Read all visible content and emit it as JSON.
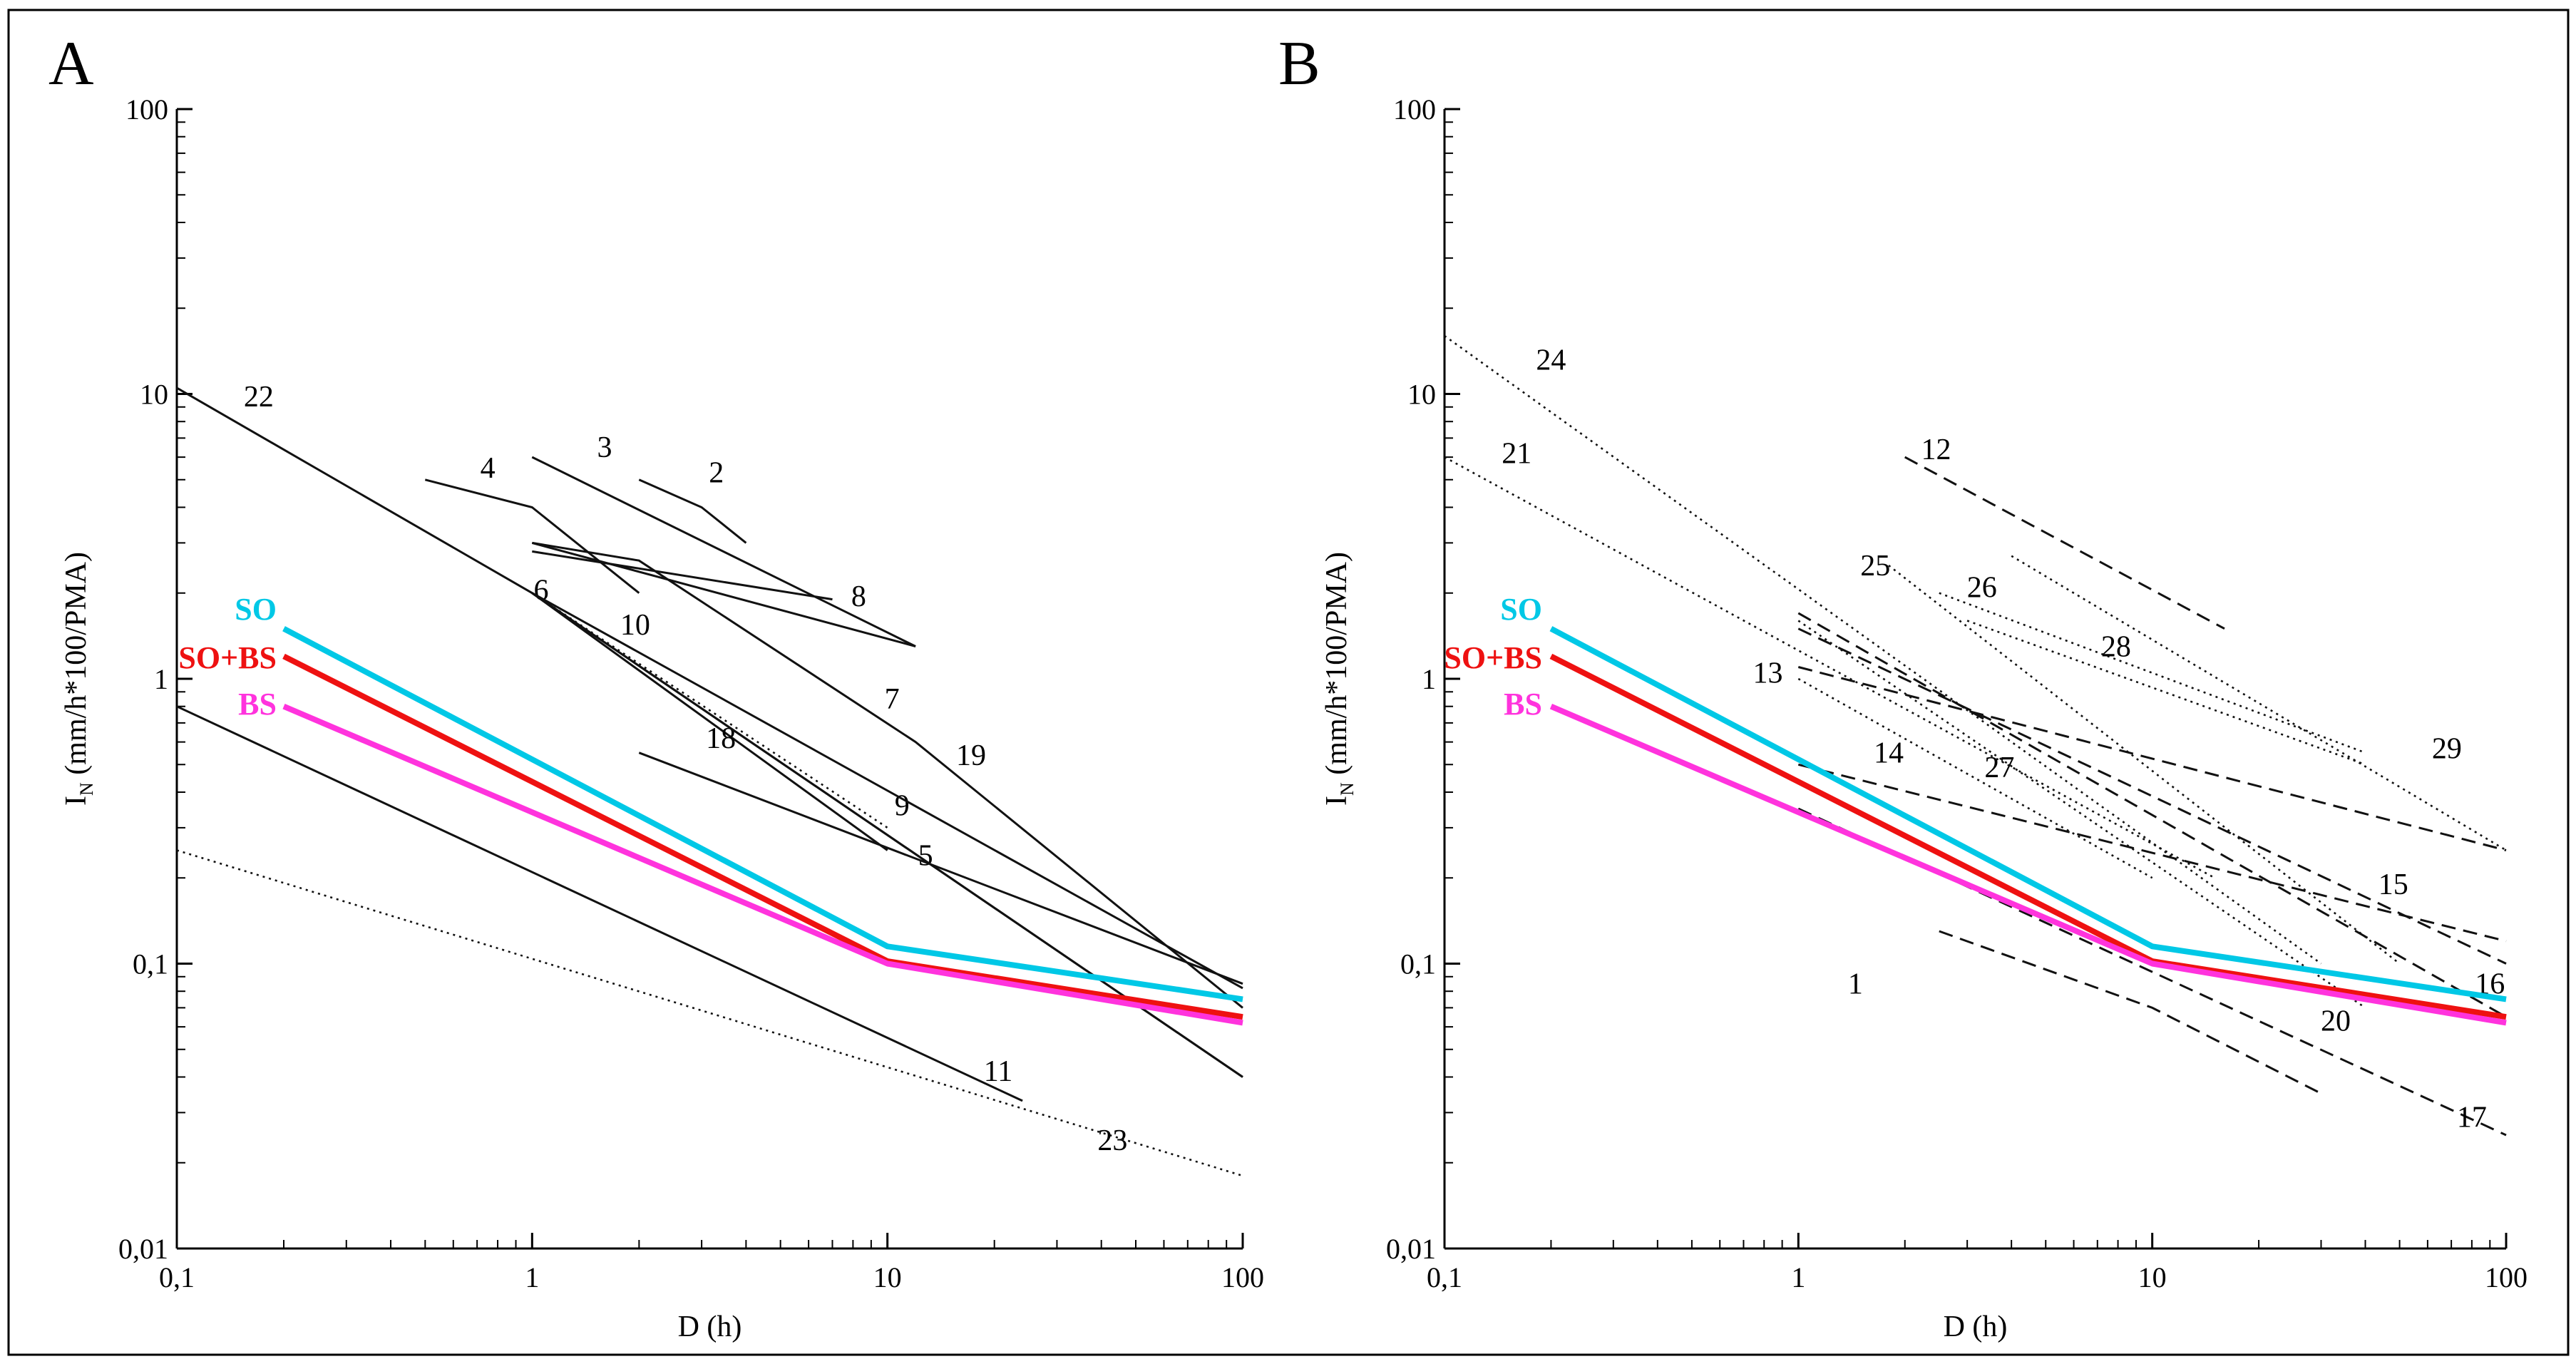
{
  "figure": {
    "panels": [
      "A",
      "B"
    ]
  },
  "chart_data": [
    {
      "panel": "A",
      "type": "line",
      "scale": "log-log",
      "xlabel": "D (h)",
      "ylabel_main": "I",
      "ylabel_sub": "N",
      "ylabel_rest": " (mm/h*100/PMA)",
      "xlim": [
        0.1,
        100
      ],
      "ylim": [
        0.01,
        100
      ],
      "x_ticks": [
        {
          "value": 0.1,
          "label": "0,1"
        },
        {
          "value": 1,
          "label": "1"
        },
        {
          "value": 10,
          "label": "10"
        },
        {
          "value": 100,
          "label": "100"
        }
      ],
      "y_ticks": [
        {
          "value": 0.01,
          "label": "0,01"
        },
        {
          "value": 0.1,
          "label": "0,1"
        },
        {
          "value": 1,
          "label": "1"
        },
        {
          "value": 10,
          "label": "10"
        },
        {
          "value": 100,
          "label": "100"
        }
      ],
      "highlighted_series": [
        {
          "name": "SO",
          "color": "#00c8e6",
          "points": [
            [
              0.2,
              1.5
            ],
            [
              10,
              0.115
            ],
            [
              100,
              0.075
            ]
          ]
        },
        {
          "name": "SO+BS",
          "color": "#ee1111",
          "points": [
            [
              0.2,
              1.2
            ],
            [
              10,
              0.102
            ],
            [
              100,
              0.065
            ]
          ]
        },
        {
          "name": "BS",
          "color": "#ff33dd",
          "points": [
            [
              0.2,
              0.8
            ],
            [
              10,
              0.1
            ],
            [
              100,
              0.062
            ]
          ]
        }
      ],
      "series": [
        {
          "id": "2",
          "style": "solid",
          "points": [
            [
              2,
              5
            ],
            [
              3,
              4
            ],
            [
              4,
              3
            ]
          ],
          "label_at": [
            3.3,
            5.3
          ]
        },
        {
          "id": "3",
          "style": "solid",
          "points": [
            [
              1,
              6
            ],
            [
              12,
              1.3
            ]
          ],
          "label_at": [
            1.6,
            6.5
          ]
        },
        {
          "id": "4",
          "style": "solid",
          "points": [
            [
              0.5,
              5
            ],
            [
              1,
              4
            ],
            [
              2,
              2
            ]
          ],
          "label_at": [
            0.75,
            5.5
          ]
        },
        {
          "id": "5",
          "style": "solid",
          "points": [
            [
              1,
              2
            ],
            [
              10,
              0.25
            ]
          ],
          "label_at": [
            12.8,
            0.24
          ]
        },
        {
          "id": "6",
          "style": "solid",
          "points": [
            [
              1,
              3
            ],
            [
              2,
              2.6
            ],
            [
              12,
              0.6
            ],
            [
              100,
              0.07
            ]
          ],
          "label_at": [
            1.06,
            2.05
          ]
        },
        {
          "id": "7",
          "style": "solid",
          "points": [
            [
              1,
              3
            ],
            [
              12,
              1.3
            ]
          ],
          "label_at": [
            10.3,
            0.85
          ]
        },
        {
          "id": "8",
          "style": "solid",
          "points": [
            [
              1,
              2.8
            ],
            [
              7,
              1.9
            ]
          ],
          "label_at": [
            8.3,
            1.95
          ]
        },
        {
          "id": "9",
          "style": "dotted",
          "points": [
            [
              1,
              2
            ],
            [
              10,
              0.3
            ]
          ],
          "label_at": [
            11,
            0.36
          ]
        },
        {
          "id": "10",
          "style": "solid",
          "points": [
            [
              1,
              2
            ],
            [
              100,
              0.04
            ]
          ],
          "label_at": [
            1.95,
            1.55
          ]
        },
        {
          "id": "11",
          "style": "solid",
          "points": [
            [
              0.1,
              0.8
            ],
            [
              24,
              0.033
            ]
          ],
          "label_at": [
            20.5,
            0.042
          ]
        },
        {
          "id": "18",
          "style": "solid",
          "points": [
            [
              2,
              0.55
            ],
            [
              100,
              0.085
            ]
          ],
          "label_at": [
            3.4,
            0.62
          ]
        },
        {
          "id": "19",
          "style": "solid",
          "points": [
            [
              1,
              2
            ],
            [
              100,
              0.082
            ]
          ],
          "label_at": [
            17.2,
            0.54
          ]
        },
        {
          "id": "22",
          "style": "solid",
          "points": [
            [
              0.1,
              10.5
            ],
            [
              1,
              2
            ],
            [
              100,
              0.04
            ]
          ],
          "label_at": [
            0.17,
            9.8
          ]
        },
        {
          "id": "23",
          "style": "dotted",
          "points": [
            [
              0.1,
              0.25
            ],
            [
              100,
              0.018
            ]
          ],
          "label_at": [
            43,
            0.024
          ]
        }
      ]
    },
    {
      "panel": "B",
      "type": "line",
      "scale": "log-log",
      "xlabel": "D (h)",
      "ylabel_main": "I",
      "ylabel_sub": "N",
      "ylabel_rest": " (mm/h*100/PMA)",
      "xlim": [
        0.1,
        100
      ],
      "ylim": [
        0.01,
        100
      ],
      "x_ticks": [
        {
          "value": 0.1,
          "label": "0,1"
        },
        {
          "value": 1,
          "label": "1"
        },
        {
          "value": 10,
          "label": "10"
        },
        {
          "value": 100,
          "label": "100"
        }
      ],
      "y_ticks": [
        {
          "value": 0.01,
          "label": "0,01"
        },
        {
          "value": 0.1,
          "label": "0,1"
        },
        {
          "value": 1,
          "label": "1"
        },
        {
          "value": 10,
          "label": "10"
        },
        {
          "value": 100,
          "label": "100"
        }
      ],
      "highlighted_series": [
        {
          "name": "SO",
          "color": "#00c8e6",
          "points": [
            [
              0.2,
              1.5
            ],
            [
              10,
              0.115
            ],
            [
              100,
              0.075
            ]
          ]
        },
        {
          "name": "SO+BS",
          "color": "#ee1111",
          "points": [
            [
              0.2,
              1.2
            ],
            [
              10,
              0.102
            ],
            [
              100,
              0.065
            ]
          ]
        },
        {
          "name": "BS",
          "color": "#ff33dd",
          "points": [
            [
              0.2,
              0.8
            ],
            [
              10,
              0.1
            ],
            [
              100,
              0.062
            ]
          ]
        }
      ],
      "series": [
        {
          "id": "1",
          "style": "dashed",
          "points": [
            [
              2.5,
              0.13
            ],
            [
              10,
              0.07
            ],
            [
              30,
              0.035
            ]
          ],
          "label_at": [
            1.45,
            0.085
          ]
        },
        {
          "id": "12",
          "style": "dashed",
          "points": [
            [
              2,
              6
            ],
            [
              16,
              1.5
            ]
          ],
          "label_at": [
            2.45,
            6.4
          ]
        },
        {
          "id": "13",
          "style": "dashed",
          "points": [
            [
              1,
              1.1
            ],
            [
              100,
              0.25
            ]
          ],
          "label_at": [
            0.82,
            1.05
          ]
        },
        {
          "id": "14",
          "style": "dashed",
          "points": [
            [
              1,
              0.5
            ],
            [
              100,
              0.12
            ]
          ],
          "label_at": [
            1.8,
            0.55
          ]
        },
        {
          "id": "15",
          "style": "dashed",
          "points": [
            [
              1,
              1.5
            ],
            [
              100,
              0.1
            ]
          ],
          "label_at": [
            48,
            0.19
          ]
        },
        {
          "id": "16",
          "style": "dashed",
          "points": [
            [
              1,
              1.7
            ],
            [
              100,
              0.065
            ]
          ],
          "label_at": [
            90,
            0.085
          ]
        },
        {
          "id": "17",
          "style": "dashed",
          "points": [
            [
              1,
              0.35
            ],
            [
              100,
              0.025
            ]
          ],
          "label_at": [
            80,
            0.029
          ]
        },
        {
          "id": "20",
          "style": "dotted",
          "points": [
            [
              1,
              1.6
            ],
            [
              40,
              0.07
            ]
          ],
          "label_at": [
            33,
            0.063
          ]
        },
        {
          "id": "21",
          "style": "dotted",
          "points": [
            [
              0.1,
              6
            ],
            [
              15,
              0.2
            ]
          ],
          "label_at": [
            0.16,
            6.2
          ]
        },
        {
          "id": "24",
          "style": "dotted",
          "points": [
            [
              0.1,
              16
            ],
            [
              30,
              0.1
            ]
          ],
          "label_at": [
            0.2,
            13.2
          ]
        },
        {
          "id": "25",
          "style": "dotted",
          "points": [
            [
              1.8,
              2.5
            ],
            [
              50,
              0.1
            ]
          ],
          "label_at": [
            1.65,
            2.5
          ]
        },
        {
          "id": "26",
          "style": "dotted",
          "points": [
            [
              2.5,
              2
            ],
            [
              40,
              0.55
            ]
          ],
          "label_at": [
            3.3,
            2.1
          ]
        },
        {
          "id": "27",
          "style": "dotted",
          "points": [
            [
              1,
              1
            ],
            [
              10,
              0.2
            ]
          ],
          "label_at": [
            3.7,
            0.49
          ]
        },
        {
          "id": "28",
          "style": "dotted",
          "points": [
            [
              3,
              1.6
            ],
            [
              40,
              0.5
            ]
          ],
          "label_at": [
            7.9,
            1.3
          ]
        },
        {
          "id": "29",
          "style": "dotted",
          "points": [
            [
              4,
              2.7
            ],
            [
              100,
              0.25
            ]
          ],
          "label_at": [
            68,
            0.57
          ]
        }
      ]
    }
  ]
}
